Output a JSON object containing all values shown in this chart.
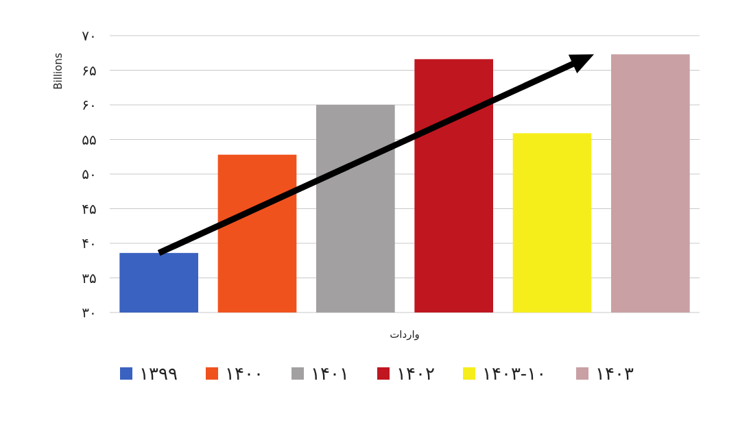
{
  "chart_data": {
    "type": "bar",
    "ylabel": "Billions",
    "xlabel": "واردات",
    "categories": [
      null,
      null,
      null,
      null,
      null,
      null
    ],
    "series": [
      {
        "name": "۱۳۹۹",
        "color": "#3a62c0",
        "values": [
          38.6,
          null,
          null,
          null,
          null,
          null
        ]
      },
      {
        "name": "۱۴۰۰",
        "color": "#f0521e",
        "values": [
          null,
          52.8,
          null,
          null,
          null,
          null
        ]
      },
      {
        "name": "۱۴۰۱",
        "color": "#a3a0a2",
        "values": [
          null,
          null,
          60.0,
          null,
          null,
          null
        ]
      },
      {
        "name": "۱۴۰۲",
        "color": "#c01620",
        "values": [
          null,
          null,
          null,
          66.6,
          null,
          null
        ]
      },
      {
        "name": "۱۴۰۳-۱۰",
        "color": "#f6ee1a",
        "values": [
          null,
          null,
          null,
          null,
          55.9,
          null
        ]
      },
      {
        "name": "۱۴۰۳",
        "color": "#c9a0a4",
        "values": [
          null,
          null,
          null,
          null,
          null,
          67.3
        ]
      }
    ],
    "ylim": [
      30,
      70
    ],
    "yticks": [
      {
        "value": 30,
        "label": "۳۰"
      },
      {
        "value": 35,
        "label": "۳۵"
      },
      {
        "value": 40,
        "label": "۴۰"
      },
      {
        "value": 45,
        "label": "۴۵"
      },
      {
        "value": 50,
        "label": "۵۰"
      },
      {
        "value": 55,
        "label": "۵۵"
      },
      {
        "value": 60,
        "label": "۶۰"
      },
      {
        "value": 65,
        "label": "۶۵"
      },
      {
        "value": 70,
        "label": "۷۰"
      }
    ],
    "grid": "y",
    "legend": "bottom",
    "tick_labels": "y"
  }
}
